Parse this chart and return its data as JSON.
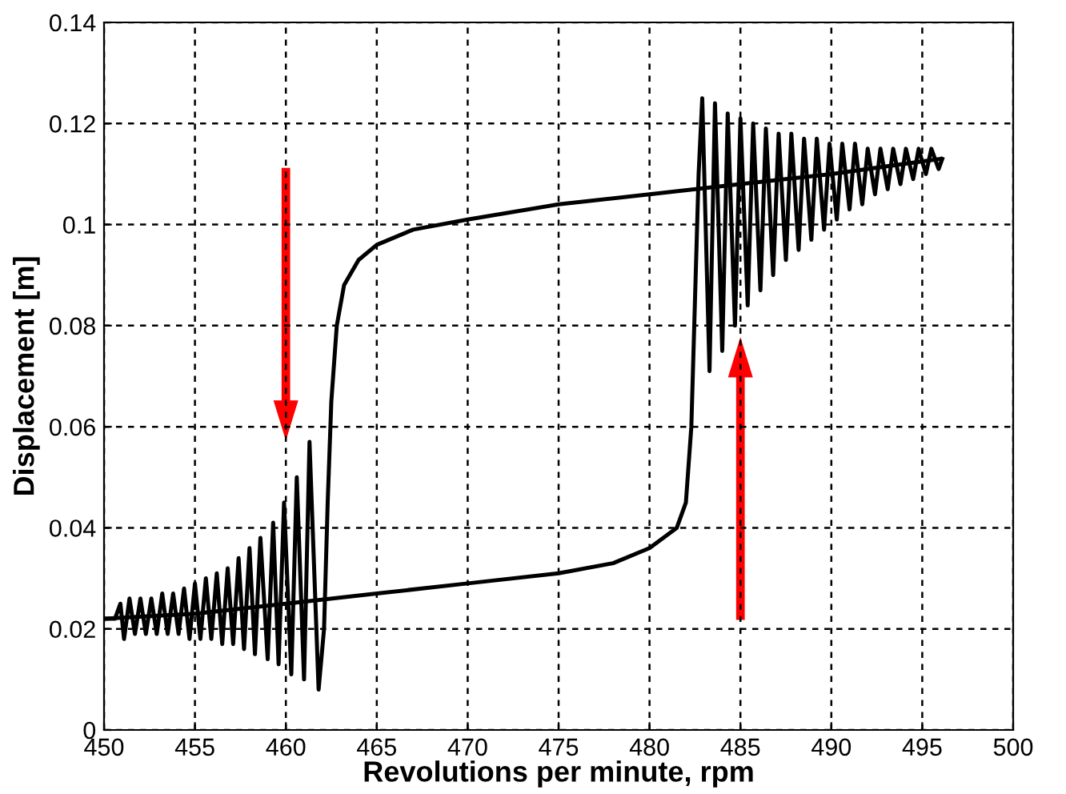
{
  "chart_data": {
    "type": "line",
    "xlabel": "Revolutions per minute, rpm",
    "ylabel": "Displacement [m]",
    "xlim": [
      450,
      500
    ],
    "ylim": [
      0,
      0.14
    ],
    "xticks": [
      450,
      455,
      460,
      465,
      470,
      475,
      480,
      485,
      490,
      495,
      500
    ],
    "yticks": [
      0,
      0.02,
      0.04,
      0.06,
      0.08,
      0.1,
      0.12,
      0.14
    ],
    "grid": true,
    "line_style": "solid",
    "marker": "none",
    "series": [
      {
        "color": "#000000",
        "x": [
          496,
          494,
          490,
          485,
          480,
          475,
          470,
          467,
          465,
          464,
          463.2,
          462.8,
          462.5,
          462.3,
          462.1,
          461.8,
          461.3,
          461.0,
          460.6,
          460.3,
          459.9,
          459.6,
          459.3,
          459.0,
          458.6,
          458.3,
          458.0,
          457.7,
          457.4,
          457.1,
          456.8,
          456.5,
          456.2,
          455.9,
          455.6,
          455.3,
          455.0,
          454.7,
          454.4,
          454.1,
          453.8,
          453.5,
          453.2,
          452.9,
          452.6,
          452.3,
          452.0,
          451.7,
          451.4,
          451.1,
          450.9,
          450.6,
          450
        ],
        "values": [
          0.113,
          0.112,
          0.11,
          0.108,
          0.106,
          0.104,
          0.101,
          0.099,
          0.096,
          0.093,
          0.088,
          0.08,
          0.065,
          0.045,
          0.02,
          0.008,
          0.057,
          0.01,
          0.05,
          0.011,
          0.045,
          0.013,
          0.041,
          0.014,
          0.038,
          0.015,
          0.036,
          0.016,
          0.034,
          0.017,
          0.032,
          0.017,
          0.031,
          0.018,
          0.03,
          0.018,
          0.029,
          0.018,
          0.028,
          0.019,
          0.027,
          0.019,
          0.027,
          0.019,
          0.026,
          0.019,
          0.026,
          0.019,
          0.026,
          0.018,
          0.025,
          0.022,
          0.022
        ]
      },
      {
        "color": "#000000",
        "x": [
          450,
          455,
          460,
          465,
          470,
          475,
          478,
          480,
          481.5,
          482,
          482.3,
          482.5,
          482.7,
          482.9,
          483.3,
          483.6,
          484.0,
          484.3,
          484.7,
          485.0,
          485.4,
          485.7,
          486.1,
          486.4,
          486.8,
          487.1,
          487.5,
          487.8,
          488.2,
          488.5,
          488.9,
          489.2,
          489.6,
          489.9,
          490.3,
          490.6,
          491.0,
          491.3,
          491.7,
          492.0,
          492.4,
          492.7,
          493.1,
          493.4,
          493.8,
          494.1,
          494.5,
          494.8,
          495.2,
          495.5,
          495.9,
          496.1
        ],
        "values": [
          0.022,
          0.023,
          0.025,
          0.027,
          0.029,
          0.031,
          0.033,
          0.036,
          0.04,
          0.045,
          0.06,
          0.085,
          0.11,
          0.125,
          0.071,
          0.124,
          0.075,
          0.122,
          0.08,
          0.121,
          0.084,
          0.12,
          0.087,
          0.119,
          0.09,
          0.118,
          0.093,
          0.118,
          0.095,
          0.117,
          0.097,
          0.117,
          0.099,
          0.116,
          0.101,
          0.116,
          0.103,
          0.116,
          0.104,
          0.115,
          0.106,
          0.115,
          0.107,
          0.115,
          0.108,
          0.115,
          0.109,
          0.115,
          0.11,
          0.115,
          0.111,
          0.113
        ]
      }
    ]
  }
}
